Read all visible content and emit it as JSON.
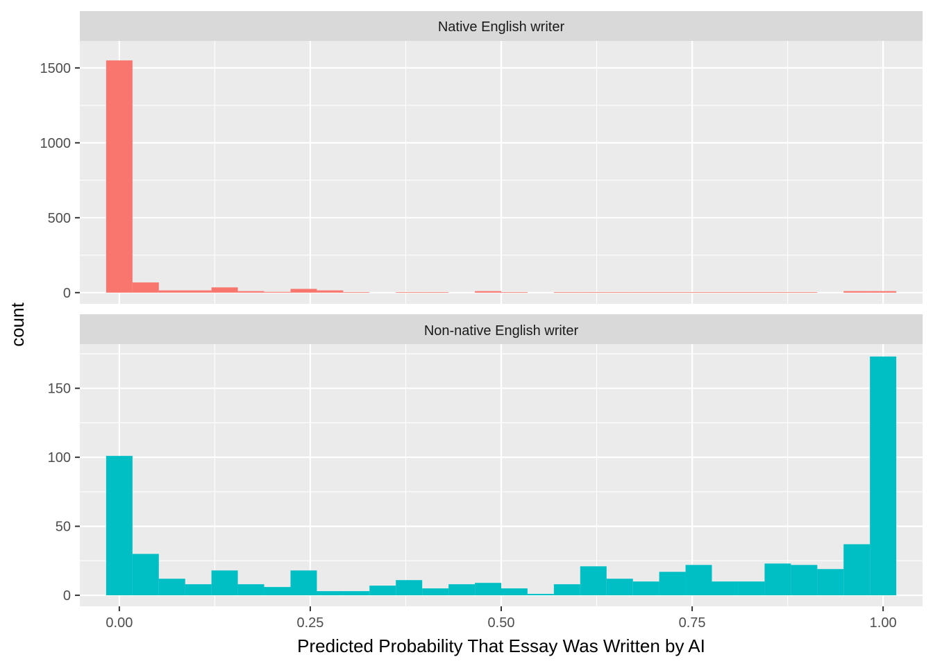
{
  "chart_data": {
    "type": "bar",
    "subtype": "faceted-histogram",
    "xlabel": "Predicted Probability That Essay Was Written by AI",
    "ylabel": "count",
    "x_ticks": [
      0.0,
      0.25,
      0.5,
      0.75,
      1.0
    ],
    "x_tick_labels": [
      "0.00",
      "0.25",
      "0.50",
      "0.75",
      "1.00"
    ],
    "xlim": [
      -0.0517,
      1.0517
    ],
    "bin_width": 0.0345,
    "bin_centers": [
      0.0,
      0.0345,
      0.069,
      0.1034,
      0.1379,
      0.1724,
      0.2069,
      0.2414,
      0.2759,
      0.3103,
      0.3448,
      0.3793,
      0.4138,
      0.4483,
      0.4828,
      0.5172,
      0.5517,
      0.5862,
      0.6207,
      0.6552,
      0.6897,
      0.7241,
      0.7586,
      0.7931,
      0.8276,
      0.8621,
      0.8966,
      0.931,
      0.9655,
      1.0
    ],
    "grid": true,
    "legend": "none",
    "panels": [
      {
        "strip_label": "Native English writer",
        "color": "#F8766D",
        "ylim": [
          -75,
          1680
        ],
        "y_ticks": [
          0,
          500,
          1000,
          1500
        ],
        "y_tick_labels": [
          "0",
          "500",
          "1000",
          "1500"
        ],
        "values": [
          1550,
          68,
          15,
          15,
          35,
          10,
          5,
          25,
          15,
          2,
          0,
          2,
          2,
          0,
          10,
          2,
          0,
          2,
          2,
          2,
          2,
          2,
          2,
          2,
          2,
          2,
          2,
          0,
          10,
          10
        ]
      },
      {
        "strip_label": "Non-native English writer",
        "color": "#00BFC4",
        "ylim": [
          -8,
          182
        ],
        "y_ticks": [
          0,
          50,
          100,
          150
        ],
        "y_tick_labels": [
          "0",
          "50",
          "100",
          "150"
        ],
        "values": [
          101,
          30,
          12,
          8,
          18,
          8,
          6,
          18,
          3,
          3,
          7,
          11,
          5,
          8,
          9,
          5,
          1,
          8,
          21,
          12,
          10,
          17,
          22,
          10,
          10,
          23,
          22,
          19,
          37,
          173
        ]
      }
    ]
  }
}
